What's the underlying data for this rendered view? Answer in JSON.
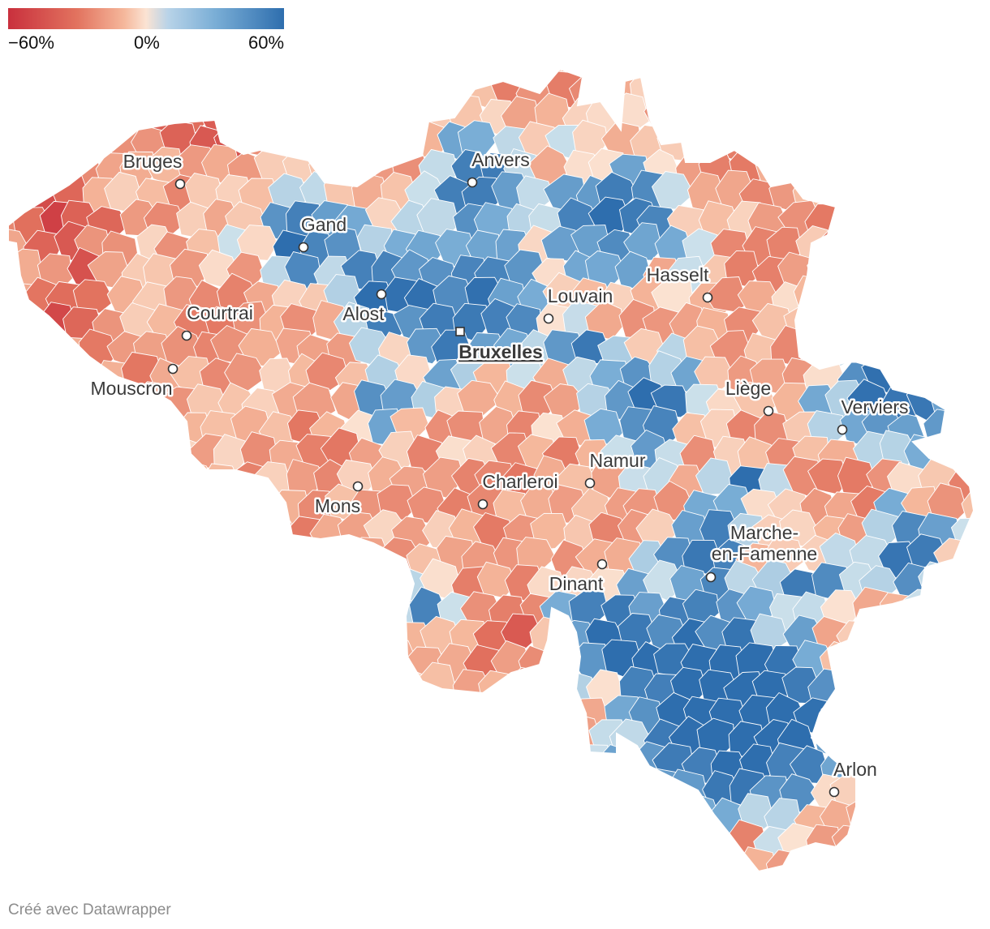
{
  "legend": {
    "min_label": "−60%",
    "mid_label": "0%",
    "max_label": "60%",
    "colors": {
      "negative": "#c9303d",
      "neutral": "#fbe3d3",
      "positive": "#2e6eae"
    }
  },
  "map": {
    "country": "Belgique",
    "value_range": [
      -60,
      60
    ],
    "cities": [
      {
        "name": "Bruges",
        "type": "city"
      },
      {
        "name": "Anvers",
        "type": "city"
      },
      {
        "name": "Gand",
        "type": "city"
      },
      {
        "name": "Hasselt",
        "type": "city"
      },
      {
        "name": "Louvain",
        "type": "city"
      },
      {
        "name": "Courtrai",
        "type": "city"
      },
      {
        "name": "Alost",
        "type": "city"
      },
      {
        "name": "Bruxelles",
        "type": "capital"
      },
      {
        "name": "Mouscron",
        "type": "city"
      },
      {
        "name": "Liège",
        "type": "city"
      },
      {
        "name": "Verviers",
        "type": "city"
      },
      {
        "name": "Namur",
        "type": "city"
      },
      {
        "name": "Charleroi",
        "type": "city"
      },
      {
        "name": "Mons",
        "type": "city"
      },
      {
        "name": "Marche-\nen-Famenne",
        "type": "city"
      },
      {
        "name": "Dinant",
        "type": "city"
      },
      {
        "name": "Arlon",
        "type": "city"
      }
    ]
  },
  "footer": {
    "credit": "Créé avec Datawrapper"
  }
}
